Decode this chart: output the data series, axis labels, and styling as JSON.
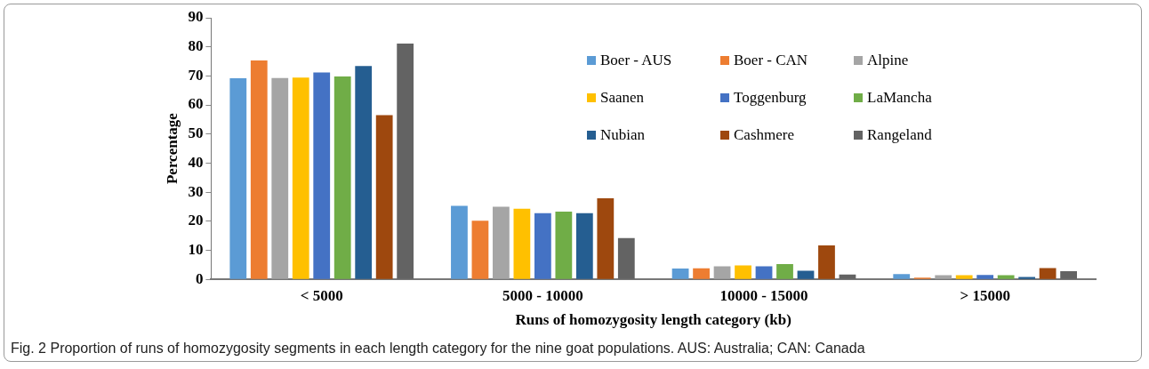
{
  "chart_data": {
    "type": "bar",
    "xlabel": "Runs of homozygosity length category (kb)",
    "ylabel": "Percentage",
    "categories": [
      "< 5000",
      "5000 - 10000",
      "10000 - 15000",
      "> 15000"
    ],
    "series": [
      {
        "name": "Boer - AUS",
        "color": "#5b9bd5",
        "values": [
          69.2,
          25.3,
          3.7,
          1.8
        ]
      },
      {
        "name": "Boer - CAN",
        "color": "#ed7d31",
        "values": [
          75.3,
          20.2,
          3.8,
          0.6
        ]
      },
      {
        "name": "Alpine",
        "color": "#a5a5a5",
        "values": [
          69.3,
          25.0,
          4.5,
          1.4
        ]
      },
      {
        "name": "Saanen",
        "color": "#ffc000",
        "values": [
          69.4,
          24.3,
          4.8,
          1.4
        ]
      },
      {
        "name": "Toggenburg",
        "color": "#4472c4",
        "values": [
          71.2,
          22.8,
          4.5,
          1.5
        ]
      },
      {
        "name": "LaMancha",
        "color": "#70ad47",
        "values": [
          69.8,
          23.3,
          5.3,
          1.4
        ]
      },
      {
        "name": "Nubian",
        "color": "#255e91",
        "values": [
          73.4,
          22.8,
          3.0,
          0.8
        ]
      },
      {
        "name": "Cashmere",
        "color": "#9e480e",
        "values": [
          56.5,
          27.9,
          11.7,
          3.9
        ]
      },
      {
        "name": "Rangeland",
        "color": "#636363",
        "values": [
          81.1,
          14.2,
          1.7,
          2.8
        ]
      }
    ],
    "ylim": [
      0,
      90
    ],
    "yticks": [
      0,
      10,
      20,
      30,
      40,
      50,
      60,
      70,
      80,
      90
    ],
    "grid": false,
    "legend": "top right",
    "annotations": [
      "Fig. 2 Proportion of runs of homozygosity segments in each length category for the nine goat populations. AUS: Australia; CAN: Canada"
    ]
  }
}
